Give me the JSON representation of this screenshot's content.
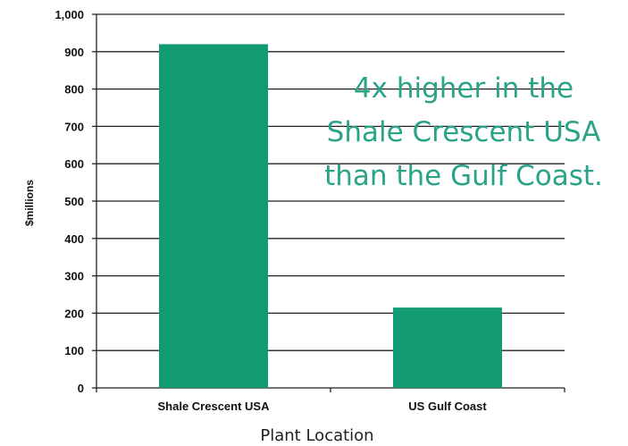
{
  "chart_data": {
    "type": "bar",
    "categories": [
      "Shale Crescent USA",
      "US Gulf Coast"
    ],
    "values": [
      920,
      215
    ],
    "ylabel": "$millions",
    "xlabel": "Plant Location",
    "ylim": [
      0,
      1000
    ],
    "yticks": [
      "0",
      "100",
      "200",
      "300",
      "400",
      "500",
      "600",
      "700",
      "800",
      "900",
      "1,000"
    ],
    "grid": true,
    "legend": "none",
    "annotation": [
      "4x higher in the",
      "Shale Crescent USA",
      "than the Gulf Coast."
    ],
    "colors": {
      "bar": "#129a72",
      "annotation": "#2aa388",
      "grid": "#222222"
    }
  }
}
